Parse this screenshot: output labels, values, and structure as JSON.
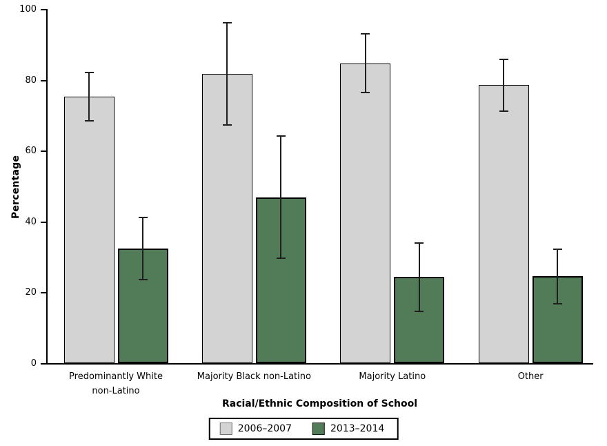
{
  "chart_data": {
    "type": "bar",
    "xlabel": "Racial/Ethnic Composition of School",
    "ylabel": "Percentage",
    "ylim": [
      0,
      100
    ],
    "yticks": [
      0,
      20,
      40,
      60,
      80,
      100
    ],
    "grid": false,
    "legend_position": "bottom",
    "categories": [
      "Predominantly White\nnon-Latino",
      "Majority Black non-Latino",
      "Majority Latino",
      "Other"
    ],
    "series": [
      {
        "name": "2006–2007",
        "color": "#d3d3d3",
        "border_color": "#000000",
        "values": [
          75.2,
          81.6,
          84.6,
          78.6
        ],
        "ci_high": [
          82.3,
          96.2,
          93.2,
          86.0
        ],
        "ci_low": [
          68.2,
          67.1,
          76.2,
          71.0
        ]
      },
      {
        "name": "2013–2014",
        "color": "#527c58",
        "border_color": "#000000",
        "values": [
          32.4,
          46.7,
          24.4,
          24.6
        ],
        "ci_high": [
          41.3,
          64.3,
          34.1,
          32.4
        ],
        "ci_low": [
          23.4,
          29.4,
          14.4,
          16.6
        ]
      }
    ]
  }
}
